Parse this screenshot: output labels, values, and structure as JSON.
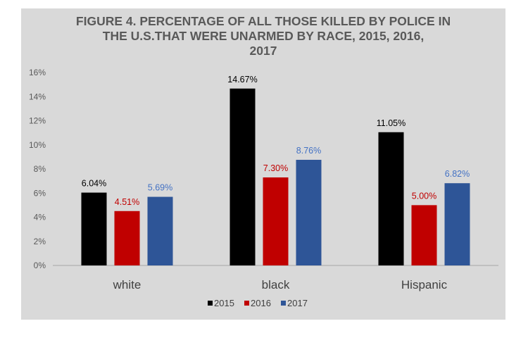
{
  "chart_data": {
    "type": "bar",
    "title_lines": [
      "FIGURE 4. PERCENTAGE OF ALL THOSE KILLED BY POLICE IN",
      "THE U.S.THAT WERE UNARMED BY RACE, 2015, 2016,",
      "2017"
    ],
    "categories": [
      "white",
      "black",
      "Hispanic"
    ],
    "series": [
      {
        "name": "2015",
        "values": [
          6.04,
          14.67,
          11.05
        ],
        "labels": [
          "6.04%",
          "14.67%",
          "11.05%"
        ],
        "color": "#000000",
        "label_color": "#000000"
      },
      {
        "name": "2016",
        "values": [
          4.51,
          7.3,
          5.0
        ],
        "labels": [
          "4.51%",
          "7.30%",
          "5.00%"
        ],
        "color": "#c00000",
        "label_color": "#c00000"
      },
      {
        "name": "2017",
        "values": [
          5.69,
          8.76,
          6.82
        ],
        "labels": [
          "5.69%",
          "8.76%",
          "6.82%"
        ],
        "color": "#2e5597",
        "label_color": "#4472c4"
      }
    ],
    "ylim": [
      0,
      16
    ],
    "yticks": [
      0,
      2,
      4,
      6,
      8,
      10,
      12,
      14,
      16
    ],
    "ytick_labels": [
      "0%",
      "2%",
      "4%",
      "6%",
      "8%",
      "10%",
      "12%",
      "14%",
      "16%"
    ],
    "grid": false,
    "legend_position": "bottom",
    "panel_color": "#d9d9d9"
  }
}
